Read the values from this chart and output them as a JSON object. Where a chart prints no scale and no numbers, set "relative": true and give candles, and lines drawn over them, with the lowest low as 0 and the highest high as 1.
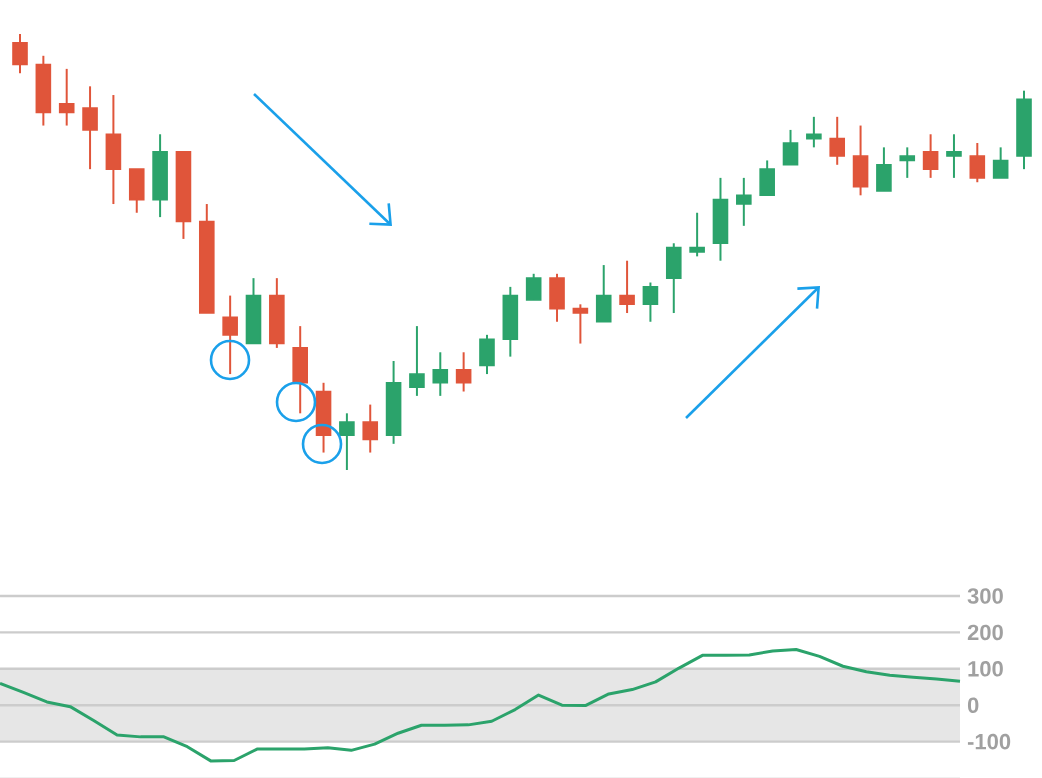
{
  "chart_data": [
    {
      "type": "candlestick",
      "relative": true,
      "categories": [
        null,
        null,
        null,
        null,
        null,
        null,
        null,
        null,
        null,
        null,
        null,
        null,
        null,
        null,
        null,
        null,
        null,
        null,
        null,
        null,
        null,
        null,
        null,
        null,
        null,
        null,
        null,
        null,
        null,
        null,
        null,
        null,
        null,
        null,
        null,
        null,
        null,
        null,
        null,
        null,
        null,
        null,
        null,
        null
      ],
      "ohlc": [
        [
          0.98,
          1.0,
          0.91,
          0.93
        ],
        [
          0.93,
          0.95,
          0.79,
          0.82
        ],
        [
          0.84,
          0.92,
          0.79,
          0.82
        ],
        [
          0.83,
          0.88,
          0.69,
          0.78
        ],
        [
          0.77,
          0.86,
          0.61,
          0.69
        ],
        [
          0.69,
          0.69,
          0.59,
          0.62
        ],
        [
          0.62,
          0.77,
          0.58,
          0.73
        ],
        [
          0.73,
          0.73,
          0.53,
          0.57
        ],
        [
          0.57,
          0.61,
          0.36,
          0.36
        ],
        [
          0.35,
          0.4,
          0.22,
          0.31
        ],
        [
          0.29,
          0.44,
          0.29,
          0.4
        ],
        [
          0.4,
          0.44,
          0.28,
          0.29
        ],
        [
          0.28,
          0.33,
          0.13,
          0.2
        ],
        [
          0.18,
          0.2,
          0.04,
          0.08
        ],
        [
          0.08,
          0.13,
          0.0,
          0.11
        ],
        [
          0.11,
          0.15,
          0.04,
          0.07
        ],
        [
          0.08,
          0.25,
          0.06,
          0.2
        ],
        [
          0.19,
          0.33,
          0.17,
          0.22
        ],
        [
          0.2,
          0.27,
          0.17,
          0.23
        ],
        [
          0.23,
          0.27,
          0.18,
          0.2
        ],
        [
          0.24,
          0.31,
          0.22,
          0.3
        ],
        [
          0.3,
          0.42,
          0.26,
          0.4
        ],
        [
          0.39,
          0.45,
          0.39,
          0.44
        ],
        [
          0.44,
          0.45,
          0.34,
          0.37
        ],
        [
          0.37,
          0.38,
          0.29,
          0.36
        ],
        [
          0.34,
          0.47,
          0.34,
          0.4
        ],
        [
          0.4,
          0.48,
          0.36,
          0.38
        ],
        [
          0.38,
          0.43,
          0.34,
          0.42
        ],
        [
          0.44,
          0.52,
          0.36,
          0.51
        ],
        [
          0.5,
          0.59,
          0.49,
          0.51
        ],
        [
          0.52,
          0.67,
          0.48,
          0.62
        ],
        [
          0.61,
          0.67,
          0.56,
          0.63
        ],
        [
          0.63,
          0.71,
          0.63,
          0.69
        ],
        [
          0.7,
          0.78,
          0.7,
          0.75
        ],
        [
          0.76,
          0.81,
          0.74,
          0.77
        ],
        [
          0.76,
          0.81,
          0.7,
          0.72
        ],
        [
          0.72,
          0.79,
          0.63,
          0.65
        ],
        [
          0.64,
          0.74,
          0.64,
          0.7
        ],
        [
          0.71,
          0.74,
          0.67,
          0.72
        ],
        [
          0.73,
          0.77,
          0.67,
          0.69
        ],
        [
          0.72,
          0.77,
          0.67,
          0.73
        ],
        [
          0.72,
          0.75,
          0.66,
          0.67
        ],
        [
          0.67,
          0.74,
          0.67,
          0.71
        ],
        [
          0.72,
          0.87,
          0.69,
          0.85
        ]
      ],
      "colors": [
        "#e0553a",
        "#e0553a",
        "#e0553a",
        "#e0553a",
        "#e0553a",
        "#e0553a",
        "#2ba36b",
        "#e0553a",
        "#e0553a",
        "#e0553a",
        "#2ba36b",
        "#e0553a",
        "#e0553a",
        "#e0553a",
        "#2ba36b",
        "#e0553a",
        "#2ba36b",
        "#2ba36b",
        "#2ba36b",
        "#e0553a",
        "#2ba36b",
        "#2ba36b",
        "#2ba36b",
        "#e0553a",
        "#e0553a",
        "#2ba36b",
        "#e0553a",
        "#2ba36b",
        "#2ba36b",
        "#2ba36b",
        "#2ba36b",
        "#2ba36b",
        "#2ba36b",
        "#2ba36b",
        "#2ba36b",
        "#e0553a",
        "#e0553a",
        "#2ba36b",
        "#2ba36b",
        "#e0553a",
        "#2ba36b",
        "#e0553a",
        "#2ba36b",
        "#2ba36b"
      ]
    },
    {
      "type": "line",
      "categories": [
        null,
        null,
        null,
        null,
        null,
        null,
        null,
        null,
        null,
        null,
        null,
        null,
        null,
        null,
        null,
        null,
        null,
        null,
        null,
        null,
        null,
        null,
        null,
        null,
        null,
        null,
        null,
        null,
        null,
        null,
        null,
        null,
        null,
        null,
        null,
        null,
        null,
        null,
        null,
        null,
        null,
        null
      ],
      "values": [
        60,
        35,
        9,
        -4,
        -42,
        -82,
        -87,
        -87,
        -114,
        -153,
        -152,
        -120,
        -120,
        -120,
        -117,
        -124,
        -107,
        -77,
        -55,
        -55,
        -54,
        -44,
        -12,
        28,
        0,
        -1,
        31,
        43,
        64,
        102,
        137,
        137,
        138,
        149,
        153,
        134,
        107,
        92,
        82,
        77,
        72,
        66
      ],
      "color": "#2ba36b",
      "ylim": [
        -200,
        300
      ],
      "yticks": [
        300,
        200,
        100,
        0,
        -100
      ],
      "grid": "y",
      "tick_labels": "y",
      "bands": [
        {
          "axis": "y",
          "from": -100,
          "to": 100,
          "color": "#e6e6e6"
        }
      ]
    }
  ]
}
